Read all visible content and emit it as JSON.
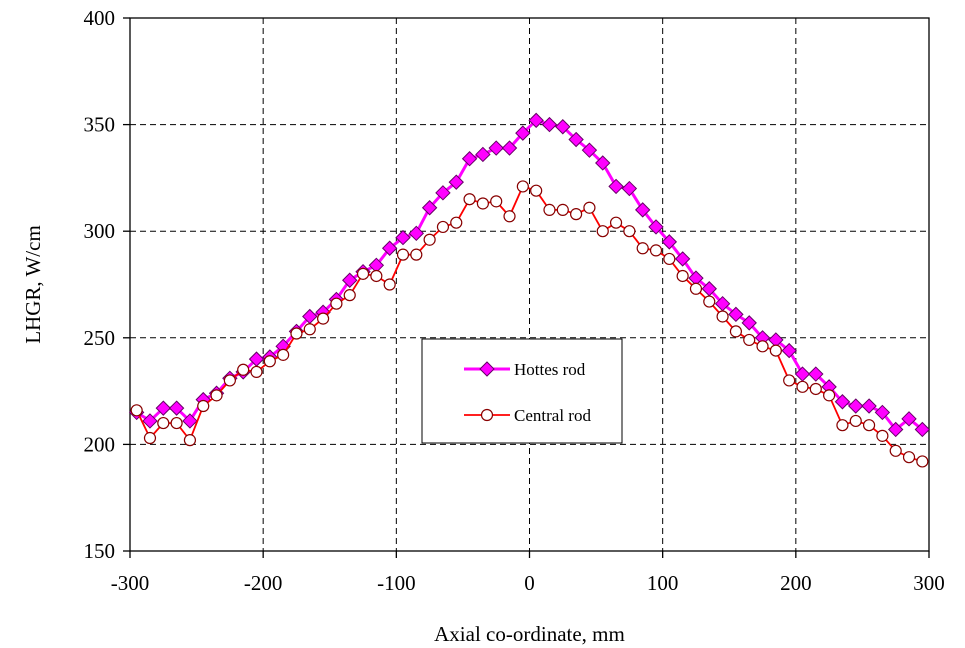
{
  "chart_data": {
    "type": "line",
    "title": "",
    "xlabel": "Axial co-ordinate, mm",
    "ylabel": "LHGR, W/cm",
    "xlim": [
      -300,
      300
    ],
    "ylim": [
      150,
      400
    ],
    "xticks": [
      -300,
      -200,
      -100,
      0,
      100,
      200,
      300
    ],
    "yticks": [
      150,
      200,
      250,
      300,
      350,
      400
    ],
    "grid": true,
    "legend_position": "center",
    "series": [
      {
        "name": "Hottes rod",
        "color": "#ff00ff",
        "marker": "diamond",
        "x": [
          -295,
          -285,
          -275,
          -265,
          -255,
          -245,
          -235,
          -225,
          -215,
          -205,
          -195,
          -185,
          -175,
          -165,
          -155,
          -145,
          -135,
          -125,
          -115,
          -105,
          -95,
          -85,
          -75,
          -65,
          -55,
          -45,
          -35,
          -25,
          -15,
          -5,
          5,
          15,
          25,
          35,
          45,
          55,
          65,
          75,
          85,
          95,
          105,
          115,
          125,
          135,
          145,
          155,
          165,
          175,
          185,
          195,
          205,
          215,
          225,
          235,
          245,
          255,
          265,
          275,
          285,
          295
        ],
        "y": [
          215,
          211,
          217,
          217,
          211,
          221,
          224,
          231,
          234,
          240,
          241,
          246,
          253,
          260,
          262,
          268,
          277,
          281,
          284,
          292,
          297,
          299,
          311,
          318,
          323,
          334,
          336,
          339,
          339,
          346,
          352,
          350,
          349,
          343,
          338,
          332,
          321,
          320,
          310,
          302,
          295,
          287,
          278,
          273,
          266,
          261,
          257,
          250,
          249,
          244,
          233,
          233,
          227,
          220,
          218,
          218,
          215,
          207,
          212,
          207
        ]
      },
      {
        "name": "Central rod",
        "color": "#ff0000",
        "marker": "circle",
        "x": [
          -295,
          -285,
          -275,
          -265,
          -255,
          -245,
          -235,
          -225,
          -215,
          -205,
          -195,
          -185,
          -175,
          -165,
          -155,
          -145,
          -135,
          -125,
          -115,
          -105,
          -95,
          -85,
          -75,
          -65,
          -55,
          -45,
          -35,
          -25,
          -15,
          -5,
          5,
          15,
          25,
          35,
          45,
          55,
          65,
          75,
          85,
          95,
          105,
          115,
          125,
          135,
          145,
          155,
          165,
          175,
          185,
          195,
          205,
          215,
          225,
          235,
          245,
          255,
          265,
          275,
          285,
          295
        ],
        "y": [
          216,
          203,
          210,
          210,
          202,
          218,
          223,
          230,
          235,
          234,
          239,
          242,
          252,
          254,
          259,
          266,
          270,
          280,
          279,
          275,
          289,
          289,
          296,
          302,
          304,
          315,
          313,
          314,
          307,
          321,
          319,
          310,
          310,
          308,
          311,
          300,
          304,
          300,
          292,
          291,
          287,
          279,
          273,
          267,
          260,
          253,
          249,
          246,
          244,
          230,
          227,
          226,
          223,
          209,
          211,
          209,
          204,
          197,
          194,
          192
        ]
      }
    ]
  }
}
